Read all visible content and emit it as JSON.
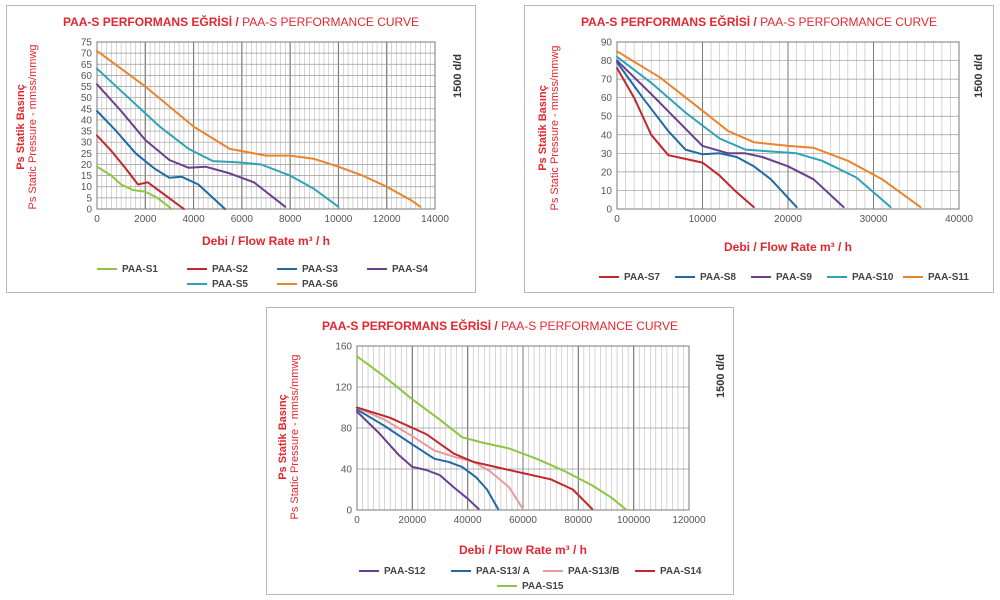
{
  "charts": [
    {
      "title_bold": "PAA-S PERFORMANS EĞRİSİ /",
      "title_normal": " PAA-S PERFORMANCE CURVE",
      "ylabel_line1": "Ps Statik Basınç",
      "ylabel_line2": "Ps Static Pressure - mmss/mmwg",
      "xlabel": "Debi / Flow Rate m³ / h",
      "rpm_label": "1500 d/d"
    },
    {
      "title_bold": "PAA-S PERFORMANS EĞRİSİ /",
      "title_normal": " PAA-S PERFORMANCE CURVE",
      "ylabel_line1": "Ps Statik Basınç",
      "ylabel_line2": "Ps Static Pressure - mmss/mmwg",
      "xlabel": "Debi / Flow Rate m³ / h",
      "rpm_label": "1500 d/d"
    },
    {
      "title_bold": "PAA-S PERFORMANS EĞRİSİ /",
      "title_normal": " PAA-S PERFORMANCE CURVE",
      "ylabel_line1": "Ps Statik Basınç",
      "ylabel_line2": "Ps Static Pressure - mmss/mmwg",
      "xlabel": "Debi / Flow Rate m³ / h",
      "rpm_label": "1500 d/d"
    }
  ],
  "chart_data": [
    {
      "type": "line",
      "xlim": [
        0,
        14000
      ],
      "ylim": [
        0,
        75
      ],
      "x_ticks": [
        0,
        2000,
        4000,
        6000,
        8000,
        10000,
        12000,
        14000
      ],
      "y_ticks": [
        0,
        5,
        10,
        15,
        20,
        25,
        30,
        35,
        40,
        45,
        50,
        55,
        60,
        65,
        70,
        75
      ],
      "grid": true,
      "legend_position": "bottom",
      "series": [
        {
          "name": "PAA-S1",
          "color": "#8dc63f",
          "points": [
            [
              0,
              19
            ],
            [
              600,
              15
            ],
            [
              1000,
              11
            ],
            [
              1500,
              8.5
            ],
            [
              2000,
              7.8
            ],
            [
              2500,
              5
            ],
            [
              3100,
              0
            ]
          ]
        },
        {
          "name": "PAA-S2",
          "color": "#c1272d",
          "points": [
            [
              0,
              33
            ],
            [
              600,
              26
            ],
            [
              1200,
              18
            ],
            [
              1700,
              11
            ],
            [
              2100,
              12
            ],
            [
              2600,
              8
            ],
            [
              3100,
              4
            ],
            [
              3600,
              0
            ]
          ]
        },
        {
          "name": "PAA-S3",
          "color": "#1f6aa5",
          "points": [
            [
              0,
              44
            ],
            [
              800,
              35
            ],
            [
              1600,
              25
            ],
            [
              2400,
              18
            ],
            [
              3000,
              14
            ],
            [
              3500,
              14.5
            ],
            [
              4200,
              11
            ],
            [
              5300,
              0
            ]
          ]
        },
        {
          "name": "PAA-S4",
          "color": "#6a3f8f",
          "points": [
            [
              0,
              56
            ],
            [
              1000,
              44
            ],
            [
              2000,
              31
            ],
            [
              3000,
              22
            ],
            [
              3800,
              18.5
            ],
            [
              4500,
              19
            ],
            [
              5500,
              16
            ],
            [
              6500,
              12
            ],
            [
              7800,
              1
            ]
          ]
        },
        {
          "name": "PAA-S5",
          "color": "#2ea3b8",
          "points": [
            [
              0,
              63
            ],
            [
              1300,
              50
            ],
            [
              2600,
              37
            ],
            [
              3800,
              27
            ],
            [
              4800,
              21.5
            ],
            [
              5800,
              21
            ],
            [
              6800,
              20
            ],
            [
              8000,
              15
            ],
            [
              9000,
              9
            ],
            [
              10000,
              1
            ]
          ]
        },
        {
          "name": "PAA-S6",
          "color": "#e8852c",
          "points": [
            [
              0,
              71
            ],
            [
              2000,
              55
            ],
            [
              4000,
              37
            ],
            [
              5500,
              27
            ],
            [
              7000,
              24
            ],
            [
              8000,
              24
            ],
            [
              9000,
              22.5
            ],
            [
              10000,
              19
            ],
            [
              11000,
              15
            ],
            [
              12000,
              10
            ],
            [
              13000,
              4
            ],
            [
              13400,
              1
            ]
          ]
        }
      ]
    },
    {
      "type": "line",
      "xlim": [
        0,
        40000
      ],
      "ylim": [
        0,
        90
      ],
      "x_ticks": [
        0,
        10000,
        20000,
        30000,
        40000
      ],
      "y_ticks": [
        0,
        10,
        20,
        30,
        40,
        50,
        60,
        70,
        80,
        90
      ],
      "grid": true,
      "legend_position": "bottom",
      "series": [
        {
          "name": "PAA-S7",
          "color": "#c1272d",
          "points": [
            [
              0,
              76
            ],
            [
              2000,
              60
            ],
            [
              4000,
              40
            ],
            [
              6000,
              29
            ],
            [
              8000,
              27
            ],
            [
              10000,
              25
            ],
            [
              12000,
              18
            ],
            [
              14000,
              9
            ],
            [
              16000,
              1
            ]
          ]
        },
        {
          "name": "PAA-S8",
          "color": "#1f6aa5",
          "points": [
            [
              0,
              79
            ],
            [
              3000,
              60
            ],
            [
              6000,
              42
            ],
            [
              8000,
              32
            ],
            [
              10000,
              29.5
            ],
            [
              12000,
              30
            ],
            [
              14000,
              28
            ],
            [
              16000,
              23
            ],
            [
              18000,
              16
            ],
            [
              21000,
              1
            ]
          ]
        },
        {
          "name": "PAA-S9",
          "color": "#6a3f8f",
          "points": [
            [
              0,
              80
            ],
            [
              4000,
              62
            ],
            [
              7000,
              48
            ],
            [
              10000,
              34
            ],
            [
              13000,
              30
            ],
            [
              15000,
              30
            ],
            [
              17000,
              28
            ],
            [
              20000,
              23
            ],
            [
              23000,
              16
            ],
            [
              26500,
              1
            ]
          ]
        },
        {
          "name": "PAA-S10",
          "color": "#2ea3b8",
          "points": [
            [
              0,
              82
            ],
            [
              4000,
              68
            ],
            [
              8000,
              52
            ],
            [
              12000,
              38
            ],
            [
              15000,
              32
            ],
            [
              18000,
              31
            ],
            [
              21000,
              30
            ],
            [
              24000,
              26
            ],
            [
              28000,
              17
            ],
            [
              32000,
              1
            ]
          ]
        },
        {
          "name": "PAA-S11",
          "color": "#e8852c",
          "points": [
            [
              0,
              85
            ],
            [
              5000,
              71
            ],
            [
              10000,
              53
            ],
            [
              13000,
              42
            ],
            [
              16000,
              36
            ],
            [
              20000,
              34
            ],
            [
              23000,
              33
            ],
            [
              27000,
              26
            ],
            [
              31000,
              16
            ],
            [
              35500,
              1
            ]
          ]
        }
      ]
    },
    {
      "type": "line",
      "xlim": [
        0,
        120000
      ],
      "ylim": [
        0,
        160
      ],
      "x_ticks": [
        0,
        20000,
        40000,
        60000,
        80000,
        100000,
        120000
      ],
      "y_ticks": [
        0,
        40,
        80,
        120,
        160
      ],
      "grid": true,
      "legend_position": "bottom",
      "series": [
        {
          "name": "PAA-S12",
          "color": "#6a3f8f",
          "points": [
            [
              0,
              96
            ],
            [
              8000,
              75
            ],
            [
              15000,
              54
            ],
            [
              20000,
              42
            ],
            [
              25000,
              39
            ],
            [
              30000,
              34
            ],
            [
              35000,
              22
            ],
            [
              40000,
              11
            ],
            [
              44000,
              1
            ]
          ]
        },
        {
          "name": "PAA-S13/ A",
          "color": "#1f6aa5",
          "points": [
            [
              0,
              98
            ],
            [
              10000,
              82
            ],
            [
              20000,
              64
            ],
            [
              28000,
              50
            ],
            [
              33000,
              47
            ],
            [
              38000,
              42
            ],
            [
              43000,
              32
            ],
            [
              47000,
              20
            ],
            [
              51000,
              1
            ]
          ]
        },
        {
          "name": "PAA-S13/B",
          "color": "#e89a9a",
          "points": [
            [
              0,
              100
            ],
            [
              10000,
              88
            ],
            [
              20000,
              72
            ],
            [
              28000,
              58
            ],
            [
              35000,
              52
            ],
            [
              42000,
              47
            ],
            [
              48000,
              38
            ],
            [
              55000,
              22
            ],
            [
              60000,
              1
            ]
          ]
        },
        {
          "name": "PAA-S14",
          "color": "#c1272d",
          "points": [
            [
              0,
              100
            ],
            [
              12000,
              90
            ],
            [
              25000,
              74
            ],
            [
              35000,
              55
            ],
            [
              42000,
              47
            ],
            [
              50000,
              42
            ],
            [
              60000,
              36
            ],
            [
              70000,
              30
            ],
            [
              78000,
              20
            ],
            [
              85000,
              1
            ]
          ]
        },
        {
          "name": "PAA-S15",
          "color": "#8dc63f",
          "points": [
            [
              0,
              150
            ],
            [
              10000,
              130
            ],
            [
              20000,
              108
            ],
            [
              30000,
              88
            ],
            [
              38000,
              71
            ],
            [
              45000,
              66
            ],
            [
              55000,
              60
            ],
            [
              65000,
              50
            ],
            [
              75000,
              38
            ],
            [
              85000,
              24
            ],
            [
              92000,
              12
            ],
            [
              97000,
              1
            ]
          ]
        }
      ]
    }
  ]
}
